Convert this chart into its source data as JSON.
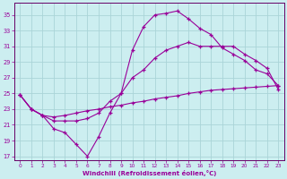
{
  "xlabel": "Windchill (Refroidissement éolien,°C)",
  "bg_color": "#cceef0",
  "grid_color": "#aad4d8",
  "line_color": "#990099",
  "spine_color": "#660066",
  "xlim": [
    -0.5,
    23.5
  ],
  "ylim": [
    16.5,
    36.5
  ],
  "yticks": [
    17,
    19,
    21,
    23,
    25,
    27,
    29,
    31,
    33,
    35
  ],
  "xticks": [
    0,
    1,
    2,
    3,
    4,
    5,
    6,
    7,
    8,
    9,
    10,
    11,
    12,
    13,
    14,
    15,
    16,
    17,
    18,
    19,
    20,
    21,
    22,
    23
  ],
  "series": [
    [
      24.8,
      23.0,
      22.2,
      20.5,
      20.0,
      18.5,
      17.0,
      19.5,
      22.5,
      25.0,
      30.5,
      33.5,
      35.0,
      35.2,
      35.5,
      34.5,
      33.3,
      32.5,
      30.8,
      30.0,
      29.2,
      28.0,
      27.5,
      26.0
    ],
    [
      24.8,
      23.0,
      22.2,
      21.5,
      21.5,
      21.5,
      21.8,
      22.5,
      24.0,
      25.0,
      27.0,
      28.0,
      29.5,
      30.5,
      31.0,
      31.5,
      31.0,
      31.0,
      31.0,
      31.0,
      30.0,
      29.2,
      28.2,
      25.5
    ],
    [
      24.8,
      23.0,
      22.2,
      22.0,
      22.2,
      22.5,
      22.8,
      23.0,
      23.3,
      23.5,
      23.8,
      24.0,
      24.3,
      24.5,
      24.7,
      25.0,
      25.2,
      25.4,
      25.5,
      25.6,
      25.7,
      25.8,
      25.9,
      26.0
    ]
  ]
}
